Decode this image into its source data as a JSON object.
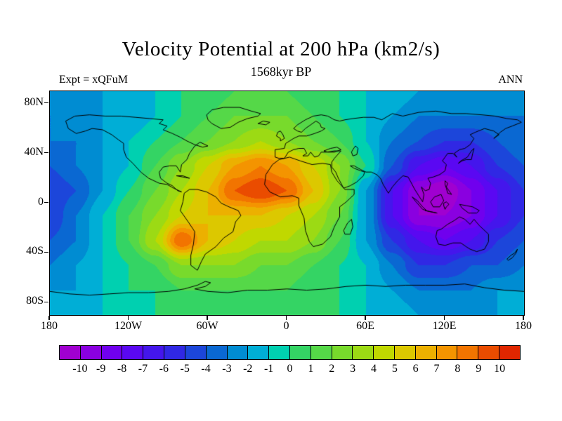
{
  "chart_data": {
    "type": "heatmap",
    "title": "Velocity Potential at 200 hPa (km2/s)",
    "subtitle": "1568kyr BP",
    "experiment_label": "Expt = xQFuM",
    "season_label": "ANN",
    "units": "km2/s",
    "projection": "equirectangular",
    "lon_range": [
      -180,
      180
    ],
    "lat_range": [
      -90,
      90
    ],
    "lon_tick_values": [
      -180,
      -120,
      -60,
      0,
      60,
      120,
      180
    ],
    "lon_tick_labels": [
      "180",
      "120W",
      "60W",
      "0",
      "60E",
      "120E",
      "180"
    ],
    "lat_tick_values": [
      80,
      40,
      0,
      -40,
      -80
    ],
    "lat_tick_labels": [
      "80N",
      "40N",
      "0",
      "40S",
      "80S"
    ],
    "contour_levels": [
      -10,
      -9,
      -8,
      -7,
      -6,
      -5,
      -4,
      -3,
      -2,
      -1,
      0,
      1,
      2,
      3,
      4,
      5,
      6,
      7,
      8,
      9,
      10
    ],
    "colorbar_labels": [
      "-10",
      "-9",
      "-8",
      "-7",
      "-6",
      "-5",
      "-4",
      "-3",
      "-2",
      "-1",
      "0",
      "1",
      "2",
      "3",
      "4",
      "5",
      "6",
      "7",
      "8",
      "9",
      "10"
    ],
    "palette": [
      "#a000d0",
      "#8a00e0",
      "#7000ee",
      "#5a08f2",
      "#4416ec",
      "#3028e4",
      "#1c46da",
      "#0a68d2",
      "#008cd2",
      "#00aed6",
      "#00d0b0",
      "#34d464",
      "#55d848",
      "#78da2c",
      "#9cda14",
      "#c0d800",
      "#dcc800",
      "#ecb000",
      "#f49400",
      "#f27400",
      "#ea4c00",
      "#e02600"
    ],
    "grid": {
      "lons": [
        -180,
        -160,
        -140,
        -120,
        -100,
        -80,
        -60,
        -40,
        -20,
        0,
        20,
        40,
        60,
        80,
        100,
        120,
        140,
        160,
        180
      ],
      "lats": [
        90,
        70,
        50,
        30,
        10,
        -10,
        -30,
        -50,
        -70,
        -90
      ],
      "values": [
        [
          -2,
          -2,
          -2,
          -1,
          -1,
          0,
          0,
          1,
          1,
          1,
          0,
          0,
          -1,
          -1,
          -2,
          -2,
          -2,
          -2,
          -2
        ],
        [
          -3,
          -3,
          -2,
          -2,
          -1,
          0,
          1,
          2,
          2,
          2,
          1,
          0,
          -1,
          -2,
          -3,
          -3,
          -3,
          -3,
          -3
        ],
        [
          -3,
          -3,
          -2,
          -1,
          0,
          1,
          2,
          3,
          4,
          3,
          2,
          1,
          -1,
          -3,
          -4,
          -5,
          -5,
          -4,
          -3
        ],
        [
          -4,
          -3,
          -2,
          -1,
          1,
          3,
          5,
          7,
          8,
          7,
          5,
          3,
          0,
          -4,
          -7,
          -8,
          -7,
          -5,
          -4
        ],
        [
          -5,
          -4,
          -2,
          0,
          2,
          4,
          6,
          9,
          10,
          9,
          6,
          3,
          -2,
          -7,
          -10,
          -11,
          -9,
          -7,
          -5
        ],
        [
          -5,
          -3,
          -1,
          1,
          3,
          5,
          6,
          6,
          6,
          5,
          4,
          2,
          -2,
          -7,
          -10,
          -10,
          -9,
          -7,
          -5
        ],
        [
          -4,
          -3,
          -1,
          1,
          4,
          9,
          6,
          5,
          4,
          4,
          3,
          1,
          -2,
          -5,
          -7,
          -8,
          -7,
          -5,
          -4
        ],
        [
          -3,
          -2,
          -1,
          0,
          1,
          3,
          3,
          3,
          2,
          2,
          1,
          0,
          -1,
          -3,
          -5,
          -5,
          -4,
          -4,
          -3
        ],
        [
          -2,
          -2,
          -1,
          0,
          0,
          1,
          1,
          1,
          1,
          1,
          0,
          0,
          -1,
          -2,
          -3,
          -3,
          -3,
          -2,
          -2
        ],
        [
          -2,
          -2,
          -1,
          -1,
          0,
          0,
          0,
          0,
          0,
          0,
          0,
          0,
          -1,
          -1,
          -2,
          -2,
          -2,
          -2,
          -2
        ]
      ]
    }
  }
}
